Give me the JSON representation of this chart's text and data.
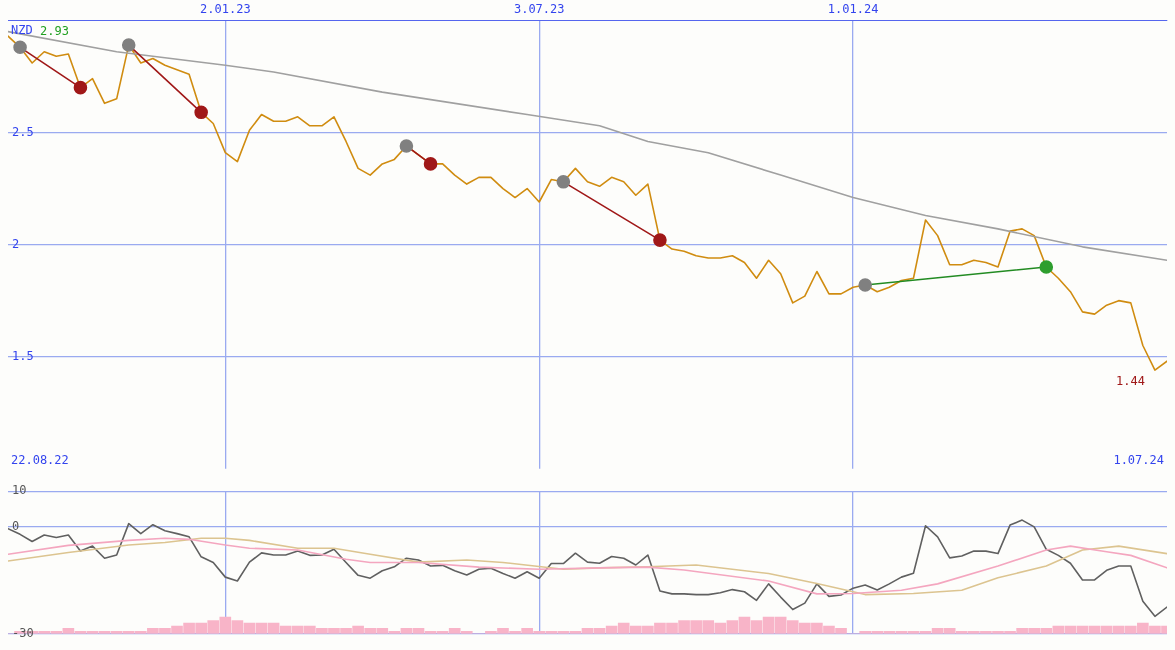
{
  "chart_data": [
    {
      "type": "line",
      "ylabel": "NZD",
      "xlim": [
        "2022-08-29",
        "2024-07-01"
      ],
      "ylim": [
        1,
        3
      ],
      "yticks": [
        1.5,
        2,
        2.5
      ],
      "xticks": [
        {
          "value": "2023-01-02",
          "label": "2.01.23"
        },
        {
          "value": "2023-07-03",
          "label": "3.07.23"
        },
        {
          "value": "2024-01-01",
          "label": "1.01.24"
        }
      ],
      "grid": true,
      "marker": "none",
      "line_style": "solid",
      "annotations": [
        {
          "text": "2.93",
          "x": "2022-08-29",
          "y": 2.93
        },
        {
          "text": "1.44",
          "x": "2024-06-24",
          "y": 1.44
        },
        "22.08.22",
        "1.07.24"
      ],
      "series": [
        {
          "color": "#a0a0a0",
          "x": [
            "2022-08-29",
            "2022-10-31",
            "2023-01-02",
            "2023-01-30",
            "2023-04-03",
            "2023-06-26",
            "2023-08-07",
            "2023-09-04",
            "2023-10-09",
            "2023-11-20",
            "2024-01-01",
            "2024-02-12",
            "2024-03-25",
            "2024-05-13",
            "2024-07-01"
          ],
          "values": [
            2.95,
            2.86,
            2.8,
            2.77,
            2.68,
            2.58,
            2.53,
            2.46,
            2.41,
            2.31,
            2.21,
            2.13,
            2.07,
            1.99,
            1.93
          ]
        },
        {
          "color": "#d08c10",
          "x": [
            "2022-08-29",
            "2022-09-05",
            "2022-09-12",
            "2022-09-19",
            "2022-09-26",
            "2022-10-03",
            "2022-10-10",
            "2022-10-17",
            "2022-10-24",
            "2022-10-31",
            "2022-11-07",
            "2022-11-14",
            "2022-11-21",
            "2022-11-28",
            "2022-12-05",
            "2022-12-12",
            "2022-12-19",
            "2022-12-26",
            "2023-01-02",
            "2023-01-09",
            "2023-01-16",
            "2023-01-23",
            "2023-01-30",
            "2023-02-06",
            "2023-02-13",
            "2023-02-20",
            "2023-02-27",
            "2023-03-06",
            "2023-03-13",
            "2023-03-20",
            "2023-03-27",
            "2023-04-03",
            "2023-04-10",
            "2023-04-17",
            "2023-04-24",
            "2023-05-01",
            "2023-05-08",
            "2023-05-15",
            "2023-05-22",
            "2023-05-29",
            "2023-06-05",
            "2023-06-12",
            "2023-06-19",
            "2023-06-26",
            "2023-07-03",
            "2023-07-10",
            "2023-07-17",
            "2023-07-24",
            "2023-07-31",
            "2023-08-07",
            "2023-08-14",
            "2023-08-21",
            "2023-08-28",
            "2023-09-04",
            "2023-09-11",
            "2023-09-18",
            "2023-09-25",
            "2023-10-02",
            "2023-10-09",
            "2023-10-16",
            "2023-10-23",
            "2023-10-30",
            "2023-11-06",
            "2023-11-13",
            "2023-11-20",
            "2023-11-27",
            "2023-12-04",
            "2023-12-11",
            "2023-12-18",
            "2023-12-25",
            "2024-01-01",
            "2024-01-08",
            "2024-01-15",
            "2024-01-22",
            "2024-01-29",
            "2024-02-05",
            "2024-02-12",
            "2024-02-19",
            "2024-02-26",
            "2024-03-04",
            "2024-03-11",
            "2024-03-18",
            "2024-03-25",
            "2024-04-01",
            "2024-04-08",
            "2024-04-15",
            "2024-04-22",
            "2024-04-29",
            "2024-05-06",
            "2024-05-13",
            "2024-05-20",
            "2024-05-27",
            "2024-06-03",
            "2024-06-10",
            "2024-06-17",
            "2024-06-24",
            "2024-07-01"
          ],
          "values": [
            2.93,
            2.88,
            2.81,
            2.86,
            2.84,
            2.85,
            2.7,
            2.74,
            2.63,
            2.65,
            2.89,
            2.81,
            2.83,
            2.8,
            2.78,
            2.76,
            2.59,
            2.54,
            2.41,
            2.37,
            2.51,
            2.58,
            2.55,
            2.55,
            2.57,
            2.53,
            2.53,
            2.57,
            2.46,
            2.34,
            2.31,
            2.36,
            2.38,
            2.44,
            2.4,
            2.36,
            2.36,
            2.31,
            2.27,
            2.3,
            2.3,
            2.25,
            2.21,
            2.25,
            2.19,
            2.29,
            2.28,
            2.34,
            2.28,
            2.26,
            2.3,
            2.28,
            2.22,
            2.27,
            2.02,
            1.98,
            1.97,
            1.95,
            1.94,
            1.94,
            1.95,
            1.92,
            1.85,
            1.93,
            1.87,
            1.74,
            1.77,
            1.88,
            1.78,
            1.78,
            1.81,
            1.82,
            1.79,
            1.81,
            1.84,
            1.85,
            2.11,
            2.04,
            1.91,
            1.91,
            1.93,
            1.92,
            1.9,
            2.06,
            2.07,
            2.04,
            1.9,
            1.85,
            1.79,
            1.7,
            1.69,
            1.73,
            1.75,
            1.74,
            1.55,
            1.44,
            1.48
          ]
        },
        {
          "marker": "circle",
          "color": "#a01818",
          "colors": [
            "#808080",
            "#a01818"
          ],
          "x": [
            "2022-09-05",
            "2022-10-10"
          ],
          "values": [
            2.88,
            2.7
          ]
        },
        {
          "marker": "circle",
          "color": "#a01818",
          "colors": [
            "#808080",
            "#a01818"
          ],
          "x": [
            "2022-11-07",
            "2022-12-19"
          ],
          "values": [
            2.89,
            2.59
          ]
        },
        {
          "marker": "circle",
          "color": "#a01818",
          "colors": [
            "#808080",
            "#a01818"
          ],
          "x": [
            "2023-04-17",
            "2023-05-01"
          ],
          "values": [
            2.44,
            2.36
          ]
        },
        {
          "marker": "circle",
          "color": "#a01818",
          "colors": [
            "#808080",
            "#a01818"
          ],
          "x": [
            "2023-07-17",
            "2023-09-11"
          ],
          "values": [
            2.28,
            2.02
          ]
        },
        {
          "marker": "circle",
          "color": "#228b22",
          "colors": [
            "#808080",
            "#2e9e2e"
          ],
          "x": [
            "2024-01-08",
            "2024-04-22"
          ],
          "values": [
            1.82,
            1.9
          ]
        }
      ]
    },
    {
      "type": "line",
      "xlim": [
        "2022-08-29",
        "2024-07-01"
      ],
      "ylim": [
        -30,
        10
      ],
      "yticks": [
        -30,
        0,
        10
      ],
      "xticks": [
        {
          "value": "2023-01-02",
          "label": null
        },
        {
          "value": "2023-07-03",
          "label": null
        },
        {
          "value": "2024-01-01",
          "label": null
        }
      ],
      "grid": true,
      "tick_labels": "y",
      "marker": "none",
      "line_style": "solid",
      "series": [
        {
          "type": "bar",
          "color": "#f8b4c8",
          "x": [
            "2022-08-29",
            "2022-09-05",
            "2022-09-12",
            "2022-09-19",
            "2022-09-26",
            "2022-10-03",
            "2022-10-10",
            "2022-10-17",
            "2022-10-24",
            "2022-10-31",
            "2022-11-07",
            "2022-11-14",
            "2022-11-21",
            "2022-11-28",
            "2022-12-05",
            "2022-12-12",
            "2022-12-19",
            "2022-12-26",
            "2023-01-02",
            "2023-01-09",
            "2023-01-16",
            "2023-01-23",
            "2023-01-30",
            "2023-02-06",
            "2023-02-13",
            "2023-02-20",
            "2023-02-27",
            "2023-03-06",
            "2023-03-13",
            "2023-03-20",
            "2023-03-27",
            "2023-04-03",
            "2023-04-10",
            "2023-04-17",
            "2023-04-24",
            "2023-05-01",
            "2023-05-08",
            "2023-05-15",
            "2023-05-22",
            "2023-05-29",
            "2023-06-05",
            "2023-06-12",
            "2023-06-19",
            "2023-06-26",
            "2023-07-03",
            "2023-07-10",
            "2023-07-17",
            "2023-07-24",
            "2023-07-31",
            "2023-08-07",
            "2023-08-14",
            "2023-08-21",
            "2023-08-28",
            "2023-09-04",
            "2023-09-11",
            "2023-09-18",
            "2023-09-25",
            "2023-10-02",
            "2023-10-09",
            "2023-10-16",
            "2023-10-23",
            "2023-10-30",
            "2023-11-06",
            "2023-11-13",
            "2023-11-20",
            "2023-11-27",
            "2023-12-04",
            "2023-12-11",
            "2023-12-18",
            "2023-12-25",
            "2024-01-01",
            "2024-01-08",
            "2024-01-15",
            "2024-01-22",
            "2024-01-29",
            "2024-02-05",
            "2024-02-12",
            "2024-02-19",
            "2024-02-26",
            "2024-03-04",
            "2024-03-11",
            "2024-03-18",
            "2024-03-25",
            "2024-04-01",
            "2024-04-08",
            "2024-04-15",
            "2024-04-22",
            "2024-04-29",
            "2024-05-06",
            "2024-05-13",
            "2024-05-20",
            "2024-05-27",
            "2024-06-03",
            "2024-06-10",
            "2024-06-17",
            "2024-06-24",
            "2024-07-01"
          ],
          "values": [
            0,
            0.7,
            0.7,
            0.7,
            0.7,
            1.5,
            0.7,
            0.7,
            0.7,
            0.7,
            0.7,
            0.7,
            1.5,
            1.5,
            2.2,
            3,
            3,
            3.7,
            4.7,
            3.7,
            3,
            3,
            3,
            2.2,
            2.2,
            2.2,
            1.5,
            1.5,
            1.5,
            2.2,
            1.5,
            1.5,
            0.7,
            1.5,
            1.5,
            0.7,
            0.7,
            1.5,
            0.7,
            0,
            0.7,
            1.5,
            0.7,
            1.5,
            0.7,
            0.7,
            0.7,
            0.7,
            1.5,
            1.5,
            2.2,
            3,
            2.2,
            2.2,
            3,
            3,
            3.7,
            3.7,
            3.7,
            3,
            3.7,
            4.7,
            3.7,
            4.7,
            4.7,
            3.7,
            3,
            3,
            2.2,
            1.5,
            0,
            0.7,
            0.7,
            0.7,
            0.7,
            0.7,
            0.7,
            1.5,
            1.5,
            0.7,
            0.7,
            0.7,
            0.7,
            0.7,
            1.5,
            1.5,
            1.5,
            2.2,
            2.2,
            2.2,
            2.2,
            2.2,
            2.2,
            2.2,
            3,
            2.2,
            2.2
          ],
          "base": [
            -30,
            -30,
            -30,
            -30,
            -30,
            -30,
            -30,
            -30,
            -30,
            -30,
            -30,
            -30,
            -30,
            -30,
            -30,
            -30,
            -30,
            -30,
            -30,
            -30,
            -30,
            -30,
            -30,
            -30,
            -30,
            -30,
            -30,
            -30,
            -30,
            -30,
            -30,
            -30,
            -30,
            -30,
            -30,
            -30,
            -30,
            -30,
            -30,
            -30,
            -30,
            -30,
            -30,
            -30,
            -30,
            -30,
            -30,
            -30,
            -30,
            -30,
            -30,
            -30,
            -30,
            -30,
            -30,
            -30,
            -30,
            -30,
            -30,
            -30,
            -30,
            -30,
            -30,
            -30,
            -30,
            -30,
            -30,
            -30,
            -30,
            -30,
            -30,
            -30,
            -30,
            -30,
            -30,
            -30,
            -30,
            -30,
            -30,
            -30,
            -30,
            -30,
            -30,
            -30,
            -30,
            -30,
            -30,
            -30,
            -30,
            -30,
            -30,
            -30,
            -30,
            -30,
            -30,
            -30,
            -30
          ]
        },
        {
          "color": "#f4a6bf",
          "x": [
            "2022-08-29",
            "2022-10-03",
            "2022-11-07",
            "2022-11-28",
            "2022-12-12",
            "2023-01-02",
            "2023-01-16",
            "2023-02-13",
            "2023-03-13",
            "2023-03-27",
            "2023-04-24",
            "2023-05-29",
            "2023-07-03",
            "2023-08-07",
            "2023-09-04",
            "2023-09-25",
            "2023-11-13",
            "2023-12-11",
            "2024-01-01",
            "2024-01-29",
            "2024-02-19",
            "2024-03-25",
            "2024-04-22",
            "2024-05-06",
            "2024-05-27",
            "2024-06-10",
            "2024-07-01"
          ],
          "values": [
            -7.7,
            -5.2,
            -3.8,
            -3.2,
            -3.5,
            -5.1,
            -6,
            -6.5,
            -9.1,
            -10,
            -10,
            -11.3,
            -11.9,
            -11.5,
            -11.3,
            -12.1,
            -15.2,
            -18.8,
            -18.7,
            -17.8,
            -16,
            -11,
            -6.5,
            -5.4,
            -7,
            -8,
            -11.5
          ]
        },
        {
          "color": "#dcc490",
          "x": [
            "2022-08-29",
            "2022-10-03",
            "2022-11-07",
            "2022-11-28",
            "2022-12-19",
            "2023-01-02",
            "2023-01-16",
            "2023-02-13",
            "2023-03-06",
            "2023-03-27",
            "2023-04-24",
            "2023-05-22",
            "2023-06-12",
            "2023-07-17",
            "2023-08-07",
            "2023-09-04",
            "2023-10-02",
            "2023-11-13",
            "2023-12-11",
            "2024-01-08",
            "2024-02-05",
            "2024-03-04",
            "2024-03-25",
            "2024-04-22",
            "2024-05-13",
            "2024-06-03",
            "2024-07-01"
          ],
          "values": [
            -9.6,
            -7.2,
            -5.1,
            -4.4,
            -3.2,
            -3.2,
            -3.8,
            -6,
            -6,
            -7.7,
            -9.9,
            -9.3,
            -10,
            -11.9,
            -11.5,
            -11.2,
            -10.7,
            -13.1,
            -15.9,
            -19,
            -18.7,
            -17.8,
            -14.3,
            -11,
            -6.5,
            -5.4,
            -7.5
          ]
        },
        {
          "color": "#606060",
          "x": [
            "2022-08-29",
            "2022-09-05",
            "2022-09-12",
            "2022-09-19",
            "2022-09-26",
            "2022-10-03",
            "2022-10-10",
            "2022-10-17",
            "2022-10-24",
            "2022-10-31",
            "2022-11-07",
            "2022-11-14",
            "2022-11-21",
            "2022-11-28",
            "2022-12-05",
            "2022-12-12",
            "2022-12-19",
            "2022-12-26",
            "2023-01-02",
            "2023-01-09",
            "2023-01-16",
            "2023-01-23",
            "2023-01-30",
            "2023-02-06",
            "2023-02-13",
            "2023-02-20",
            "2023-02-27",
            "2023-03-06",
            "2023-03-13",
            "2023-03-20",
            "2023-03-27",
            "2023-04-03",
            "2023-04-10",
            "2023-04-17",
            "2023-04-24",
            "2023-05-01",
            "2023-05-08",
            "2023-05-15",
            "2023-05-22",
            "2023-05-29",
            "2023-06-05",
            "2023-06-12",
            "2023-06-19",
            "2023-06-26",
            "2023-07-03",
            "2023-07-10",
            "2023-07-17",
            "2023-07-24",
            "2023-07-31",
            "2023-08-07",
            "2023-08-14",
            "2023-08-21",
            "2023-08-28",
            "2023-09-04",
            "2023-09-11",
            "2023-09-18",
            "2023-09-25",
            "2023-10-02",
            "2023-10-09",
            "2023-10-16",
            "2023-10-23",
            "2023-10-30",
            "2023-11-06",
            "2023-11-13",
            "2023-11-20",
            "2023-11-27",
            "2023-12-04",
            "2023-12-11",
            "2023-12-18",
            "2023-12-25",
            "2024-01-01",
            "2024-01-08",
            "2024-01-15",
            "2024-01-22",
            "2024-01-29",
            "2024-02-05",
            "2024-02-12",
            "2024-02-19",
            "2024-02-26",
            "2024-03-04",
            "2024-03-11",
            "2024-03-18",
            "2024-03-25",
            "2024-04-01",
            "2024-04-08",
            "2024-04-15",
            "2024-04-22",
            "2024-04-29",
            "2024-05-06",
            "2024-05-13",
            "2024-05-20",
            "2024-05-27",
            "2024-06-03",
            "2024-06-10",
            "2024-06-17",
            "2024-06-24",
            "2024-07-01"
          ],
          "values": [
            -0.5,
            -2.1,
            -4.1,
            -2.3,
            -3,
            -2.3,
            -6.8,
            -5.4,
            -8.8,
            -7.9,
            0.9,
            -1.9,
            0.6,
            -1.1,
            -1.9,
            -2.8,
            -8.4,
            -10,
            -14.1,
            -15.2,
            -9.9,
            -7.3,
            -7.9,
            -7.9,
            -6.8,
            -8,
            -7.9,
            -6.3,
            -10,
            -13.6,
            -14.4,
            -12.3,
            -11.2,
            -8.8,
            -9.3,
            -11,
            -10.8,
            -12.3,
            -13.5,
            -11.9,
            -11.6,
            -13.1,
            -14.4,
            -12.6,
            -14.4,
            -10.3,
            -10.3,
            -7.4,
            -9.9,
            -10.2,
            -8.3,
            -8.8,
            -10.7,
            -7.9,
            -18,
            -18.8,
            -18.8,
            -19,
            -19,
            -18.5,
            -17.6,
            -18.2,
            -20.6,
            -16,
            -19.7,
            -23.2,
            -21.4,
            -16,
            -19.5,
            -19.1,
            -17.2,
            -16.3,
            -17.7,
            -16,
            -14.1,
            -13,
            0.3,
            -2.8,
            -8.7,
            -8.2,
            -6.8,
            -6.8,
            -7.5,
            0.5,
            1.9,
            0,
            -6.3,
            -8,
            -10.2,
            -14.9,
            -14.9,
            -12.2,
            -11,
            -11,
            -20.9,
            -25.1,
            -22.5
          ]
        }
      ]
    }
  ]
}
